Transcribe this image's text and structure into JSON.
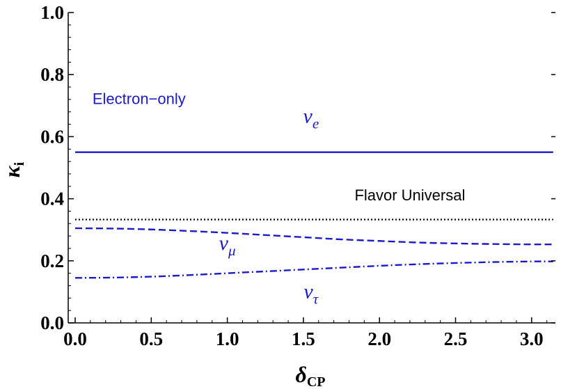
{
  "chart_data": {
    "type": "line",
    "xlabel": "δ",
    "xlabel_sub": "CP",
    "ylabel": "κ",
    "ylabel_sub": "i",
    "xlim": [
      0,
      3.14159
    ],
    "ylim": [
      0,
      1.0
    ],
    "x_ticks": [
      {
        "value": 0.0,
        "label": "0.0"
      },
      {
        "value": 0.5,
        "label": "0.5"
      },
      {
        "value": 1.0,
        "label": "1.0"
      },
      {
        "value": 1.5,
        "label": "1.5"
      },
      {
        "value": 2.0,
        "label": "2.0"
      },
      {
        "value": 2.5,
        "label": "2.5"
      },
      {
        "value": 3.0,
        "label": "3.0"
      }
    ],
    "y_ticks": [
      {
        "value": 0.0,
        "label": "0.0"
      },
      {
        "value": 0.2,
        "label": "0.2"
      },
      {
        "value": 0.4,
        "label": "0.4"
      },
      {
        "value": 0.6,
        "label": "0.6"
      },
      {
        "value": 0.8,
        "label": "0.8"
      },
      {
        "value": 1.0,
        "label": "1.0"
      }
    ],
    "grid": false,
    "series": [
      {
        "id": "nu_e",
        "color": "#1a1acc",
        "dash": "solid",
        "x": [
          0.0,
          0.5,
          1.0,
          1.5,
          2.0,
          2.5,
          3.14159
        ],
        "y": [
          0.55,
          0.55,
          0.55,
          0.55,
          0.55,
          0.55,
          0.55
        ]
      },
      {
        "id": "flavor_universal",
        "color": "#000000",
        "dash": "dotted",
        "x": [
          0.0,
          0.5,
          1.0,
          1.5,
          2.0,
          2.5,
          3.14159
        ],
        "y": [
          0.333,
          0.333,
          0.333,
          0.333,
          0.333,
          0.333,
          0.333
        ]
      },
      {
        "id": "nu_mu",
        "color": "#1a1acc",
        "dash": "dashed",
        "x": [
          0.0,
          0.25,
          0.5,
          0.75,
          1.0,
          1.25,
          1.5,
          1.75,
          2.0,
          2.25,
          2.5,
          2.75,
          3.0,
          3.14159
        ],
        "y": [
          0.305,
          0.304,
          0.301,
          0.296,
          0.29,
          0.283,
          0.276,
          0.269,
          0.264,
          0.259,
          0.256,
          0.254,
          0.253,
          0.253
        ]
      },
      {
        "id": "nu_tau",
        "color": "#1a1acc",
        "dash": "dashdot",
        "x": [
          0.0,
          0.25,
          0.5,
          0.75,
          1.0,
          1.25,
          1.5,
          1.75,
          2.0,
          2.25,
          2.5,
          2.75,
          3.0,
          3.14159
        ],
        "y": [
          0.145,
          0.146,
          0.149,
          0.154,
          0.16,
          0.166,
          0.172,
          0.178,
          0.184,
          0.189,
          0.193,
          0.196,
          0.198,
          0.198
        ]
      }
    ],
    "annotations": [
      {
        "id": "electron-only",
        "text": "Electron−only",
        "sub": "",
        "x": 0.42,
        "y": 0.705,
        "color": "#1a1acc",
        "style": "sans"
      },
      {
        "id": "nu-e",
        "text": "ν",
        "sub": "e",
        "x": 1.55,
        "y": 0.645,
        "color": "#1a1acc",
        "style": "greek"
      },
      {
        "id": "flavor-universal",
        "text": "Flavor Universal",
        "sub": "",
        "x": 2.2,
        "y": 0.395,
        "color": "#000000",
        "style": "sans"
      },
      {
        "id": "nu-mu",
        "text": "ν",
        "sub": "μ",
        "x": 1.0,
        "y": 0.235,
        "color": "#1a1acc",
        "style": "greek"
      },
      {
        "id": "nu-tau",
        "text": "ν",
        "sub": "τ",
        "x": 1.55,
        "y": 0.08,
        "color": "#1a1acc",
        "style": "greek"
      }
    ]
  }
}
